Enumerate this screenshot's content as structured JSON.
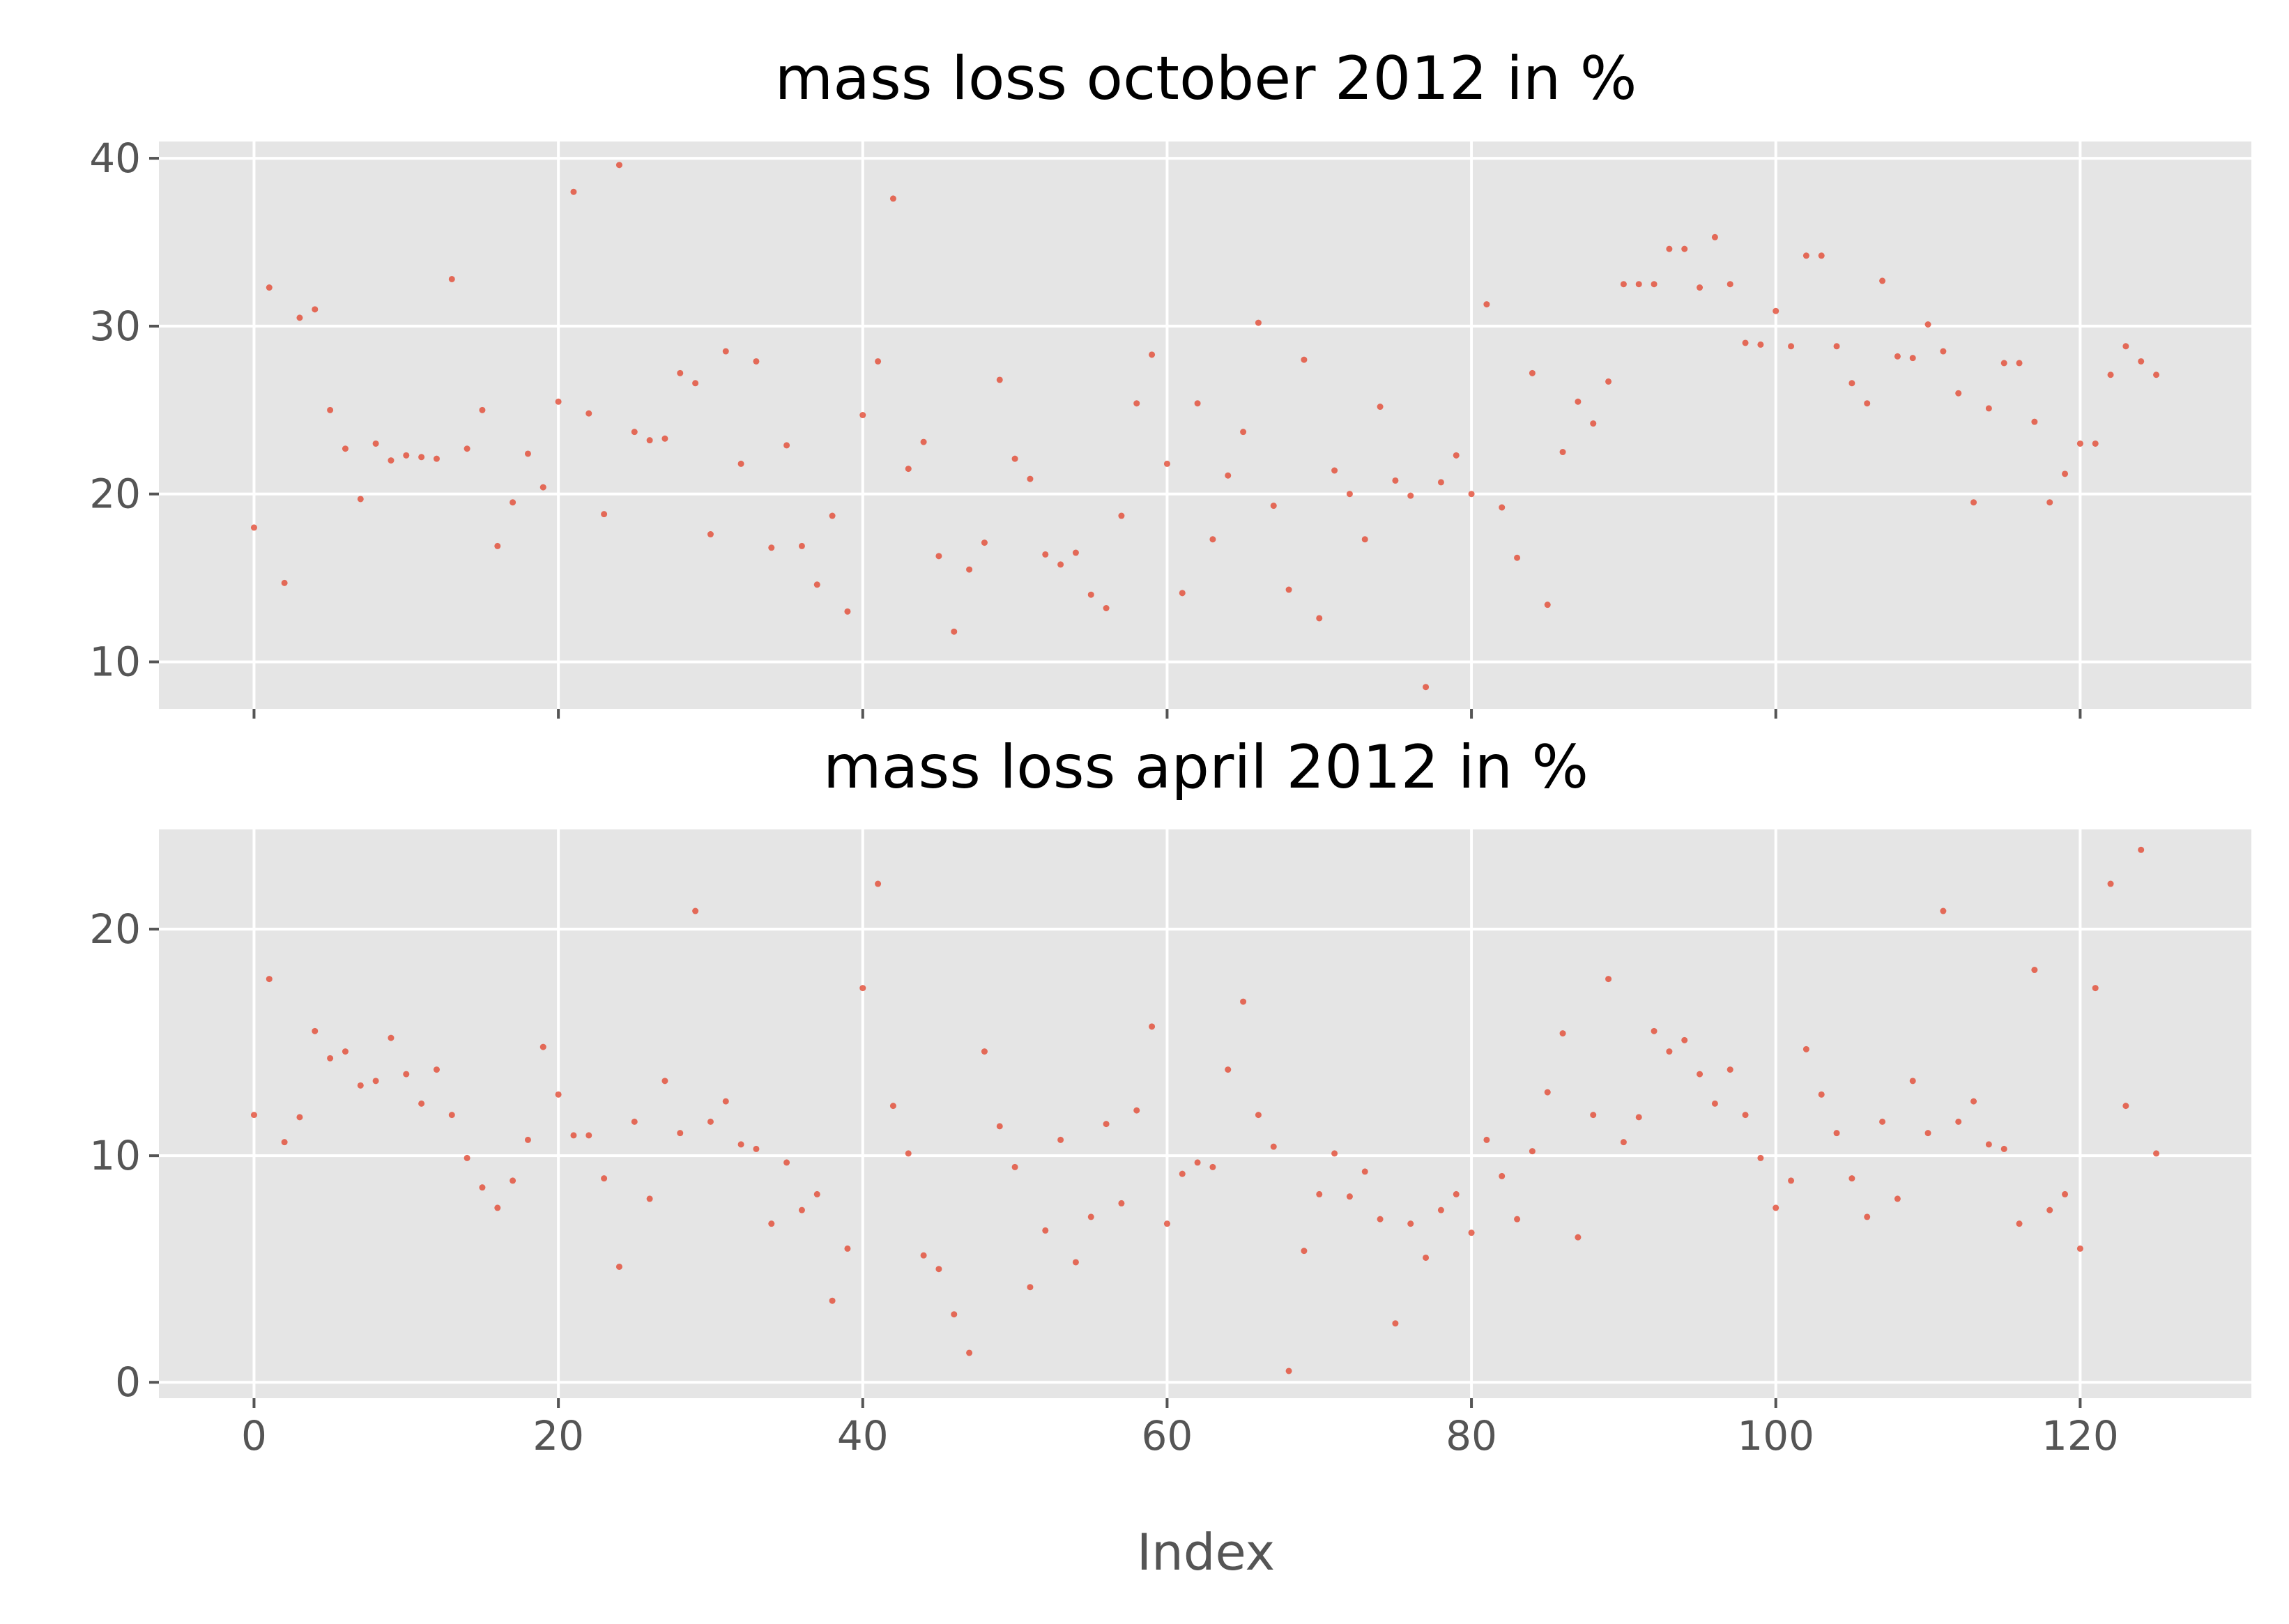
{
  "chart_data": [
    {
      "type": "scatter",
      "title": "mass loss october 2012 in %",
      "xlabel": "",
      "ylabel": "",
      "xlim": [
        -6.25,
        131.25
      ],
      "ylim": [
        7.2,
        41.0
      ],
      "xticks": [
        0,
        20,
        40,
        60,
        80,
        100,
        120
      ],
      "yticks": [
        10,
        20,
        30,
        40
      ],
      "xticklabels_visible": false,
      "grid": true,
      "point_color": "#e24a33",
      "background": "#e5e5e5",
      "y": [
        18.0,
        32.3,
        14.7,
        30.5,
        31.0,
        25.0,
        22.7,
        19.7,
        23.0,
        22.0,
        22.3,
        22.2,
        22.1,
        32.8,
        22.7,
        25.0,
        16.9,
        19.5,
        22.4,
        20.4,
        25.5,
        38.0,
        24.8,
        18.8,
        39.6,
        23.7,
        23.2,
        23.3,
        27.2,
        26.6,
        17.6,
        28.5,
        21.8,
        27.9,
        16.8,
        22.9,
        16.9,
        14.6,
        18.7,
        13.0,
        24.7,
        27.9,
        37.6,
        21.5,
        23.1,
        16.3,
        11.8,
        15.5,
        17.1,
        26.8,
        22.1,
        20.9,
        16.4,
        15.8,
        16.5,
        14.0,
        13.2,
        18.7,
        25.4,
        28.3,
        21.8,
        14.1,
        25.4,
        17.3,
        21.1,
        23.7,
        30.2,
        19.3,
        14.3,
        28.0,
        12.6,
        21.4,
        20.0,
        17.3,
        25.2,
        20.8,
        19.9,
        8.5,
        20.7,
        22.3,
        20.0,
        31.3,
        19.2,
        16.2,
        27.2,
        13.4,
        22.5,
        25.5,
        24.2,
        26.7,
        32.5,
        32.5,
        32.5,
        34.6,
        34.6,
        32.3,
        35.3,
        32.5,
        29.0,
        28.9,
        30.9,
        28.8,
        34.2,
        34.2,
        28.8,
        26.6,
        25.4,
        32.7,
        28.2,
        28.1,
        30.1,
        28.5,
        26.0,
        19.5,
        25.1,
        27.8,
        27.8,
        24.3,
        19.5,
        21.2,
        23.0,
        23.0,
        27.1,
        28.8,
        27.9,
        27.1
      ]
    },
    {
      "type": "scatter",
      "title": "mass loss april 2012 in %",
      "xlabel": "Index",
      "ylabel": "",
      "xlim": [
        -6.25,
        131.25
      ],
      "ylim": [
        -0.7,
        24.4
      ],
      "xticks": [
        0,
        20,
        40,
        60,
        80,
        100,
        120
      ],
      "yticks": [
        0,
        10,
        20
      ],
      "grid": true,
      "point_color": "#e24a33",
      "background": "#e5e5e5",
      "y": [
        11.8,
        17.8,
        10.6,
        11.7,
        15.5,
        14.3,
        14.6,
        13.1,
        13.3,
        15.2,
        13.6,
        12.3,
        13.8,
        11.8,
        9.9,
        8.6,
        7.7,
        8.9,
        10.7,
        14.8,
        12.7,
        10.9,
        10.9,
        9.0,
        5.1,
        11.5,
        8.1,
        13.3,
        11.0,
        20.8,
        11.5,
        12.4,
        10.5,
        10.3,
        7.0,
        9.7,
        7.6,
        8.3,
        3.6,
        5.9,
        17.4,
        22.0,
        12.2,
        10.1,
        5.6,
        5.0,
        3.0,
        1.3,
        14.6,
        11.3,
        9.5,
        4.2,
        6.7,
        10.7,
        5.3,
        7.3,
        11.4,
        7.9,
        12.0,
        15.7,
        7.0,
        9.2,
        9.7,
        9.5,
        13.8,
        16.8,
        11.8,
        10.4,
        0.5,
        5.8,
        8.3,
        10.1,
        8.2,
        9.3,
        7.2,
        2.6,
        7.0,
        5.5,
        7.6,
        8.3,
        6.6,
        10.7,
        9.1,
        7.2,
        10.2,
        12.8,
        15.4,
        6.4,
        11.8,
        17.8,
        10.6,
        11.7,
        15.5,
        14.6,
        15.1,
        13.6,
        12.3,
        13.8,
        11.8,
        9.9,
        7.7,
        8.9,
        14.7,
        12.7,
        11.0,
        9.0,
        7.3,
        11.5,
        8.1,
        13.3,
        11.0,
        20.8,
        11.5,
        12.4,
        10.5,
        10.3,
        7.0,
        18.2,
        7.6,
        8.3,
        5.9,
        17.4,
        22.0,
        12.2,
        23.5,
        10.1
      ]
    }
  ]
}
